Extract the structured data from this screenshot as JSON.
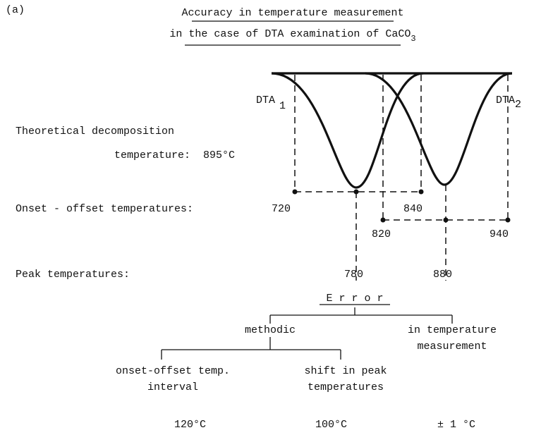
{
  "panel_label": "(a)",
  "title": {
    "line1": "Accuracy in temperature measurement",
    "line2": "in the case of DTA examination of CaCO",
    "line2_subscript": "3"
  },
  "curves": [
    {
      "label": "DTA",
      "subscript": "1"
    },
    {
      "label": "DTA",
      "subscript": "2"
    }
  ],
  "theoretical": {
    "line1": "Theoretical decomposition",
    "line2": "temperature:",
    "value": "895°C"
  },
  "onset_offset": {
    "label": "Onset - offset temperatures:",
    "values": [
      "720",
      "840",
      "820",
      "940"
    ]
  },
  "peak": {
    "label": "Peak temperatures:",
    "values": [
      "780",
      "880"
    ]
  },
  "error_tree": {
    "root": "E r r o r",
    "methodic": "methodic",
    "measurement": [
      "in temperature",
      "measurement"
    ],
    "onset_interval": [
      "onset-offset temp.",
      "interval"
    ],
    "peak_shift": [
      "shift in peak",
      "temperatures"
    ],
    "values": [
      "120°C",
      "100°C",
      "± 1 °C"
    ]
  }
}
